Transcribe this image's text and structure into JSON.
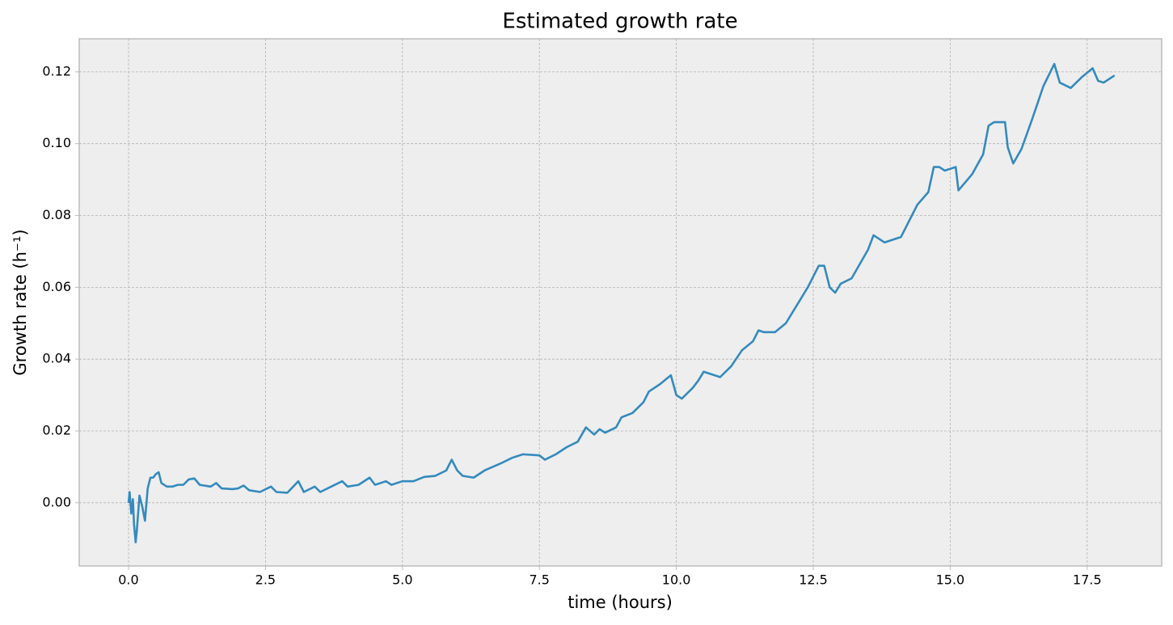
{
  "chart_data": {
    "type": "line",
    "title": "Estimated growth rate",
    "xlabel": "time (hours)",
    "ylabel": "Growth rate (h⁻¹)",
    "grid": true,
    "xlim": [
      -0.9,
      18.86
    ],
    "ylim": [
      -0.0176,
      0.1292
    ],
    "xticks": [
      {
        "value": 0,
        "label": "0.0"
      },
      {
        "value": 2.5,
        "label": "2.5"
      },
      {
        "value": 5,
        "label": "5.0"
      },
      {
        "value": 7.5,
        "label": "7.5"
      },
      {
        "value": 10,
        "label": "10.0"
      },
      {
        "value": 12.5,
        "label": "12.5"
      },
      {
        "value": 15,
        "label": "15.0"
      },
      {
        "value": 17.5,
        "label": "17.5"
      }
    ],
    "yticks": [
      {
        "value": 0,
        "label": "0.00"
      },
      {
        "value": 0.02,
        "label": "0.02"
      },
      {
        "value": 0.04,
        "label": "0.04"
      },
      {
        "value": 0.06,
        "label": "0.06"
      },
      {
        "value": 0.08,
        "label": "0.08"
      },
      {
        "value": 0.1,
        "label": "0.10"
      },
      {
        "value": 0.12,
        "label": "0.12"
      }
    ],
    "x": [
      0,
      0.02,
      0.05,
      0.08,
      0.1,
      0.13,
      0.15,
      0.2,
      0.25,
      0.3,
      0.35,
      0.4,
      0.45,
      0.5,
      0.55,
      0.6,
      0.7,
      0.8,
      0.9,
      1.0,
      1.1,
      1.2,
      1.3,
      1.5,
      1.6,
      1.7,
      1.9,
      2.0,
      2.1,
      2.2,
      2.4,
      2.6,
      2.7,
      2.9,
      3.1,
      3.2,
      3.4,
      3.5,
      3.7,
      3.9,
      4.0,
      4.2,
      4.4,
      4.5,
      4.7,
      4.8,
      5.0,
      5.2,
      5.4,
      5.6,
      5.8,
      5.9,
      6.0,
      6.1,
      6.3,
      6.5,
      6.8,
      7.0,
      7.2,
      7.5,
      7.6,
      7.8,
      8.0,
      8.2,
      8.35,
      8.5,
      8.6,
      8.7,
      8.9,
      9.0,
      9.2,
      9.4,
      9.5,
      9.7,
      9.9,
      10.0,
      10.1,
      10.3,
      10.4,
      10.5,
      10.8,
      11.0,
      11.2,
      11.4,
      11.5,
      11.6,
      11.8,
      12.0,
      12.2,
      12.4,
      12.6,
      12.7,
      12.8,
      12.9,
      13.0,
      13.2,
      13.5,
      13.6,
      13.8,
      13.9,
      14.1,
      14.3,
      14.4,
      14.6,
      14.7,
      14.8,
      14.9,
      15.1,
      15.15,
      15.4,
      15.6,
      15.7,
      15.8,
      16.0,
      16.05,
      16.15,
      16.3,
      16.5,
      16.7,
      16.9,
      17.0,
      17.2,
      17.4,
      17.6,
      17.7,
      17.8,
      18.0
    ],
    "series": [
      {
        "name": "growth rate",
        "color": "#348abd",
        "values": [
          0,
          0.003,
          -0.003,
          0.001,
          -0.006,
          -0.011,
          -0.008,
          0.002,
          -0.001,
          -0.005,
          0.004,
          0.007,
          0.007,
          0.008,
          0.0085,
          0.0055,
          0.0045,
          0.0045,
          0.005,
          0.005,
          0.0065,
          0.0068,
          0.005,
          0.0045,
          0.0055,
          0.004,
          0.0038,
          0.004,
          0.0048,
          0.0035,
          0.003,
          0.0045,
          0.003,
          0.0028,
          0.006,
          0.003,
          0.0045,
          0.003,
          0.0045,
          0.006,
          0.0045,
          0.005,
          0.007,
          0.005,
          0.006,
          0.005,
          0.006,
          0.006,
          0.0072,
          0.0075,
          0.009,
          0.012,
          0.009,
          0.0075,
          0.007,
          0.009,
          0.011,
          0.0125,
          0.0135,
          0.0132,
          0.012,
          0.0135,
          0.0155,
          0.017,
          0.021,
          0.019,
          0.0205,
          0.0195,
          0.021,
          0.0238,
          0.025,
          0.028,
          0.031,
          0.033,
          0.0355,
          0.03,
          0.029,
          0.032,
          0.034,
          0.0365,
          0.035,
          0.038,
          0.0425,
          0.045,
          0.048,
          0.0475,
          0.0475,
          0.05,
          0.055,
          0.06,
          0.066,
          0.066,
          0.06,
          0.0585,
          0.061,
          0.0625,
          0.0705,
          0.0745,
          0.0725,
          0.073,
          0.074,
          0.08,
          0.083,
          0.0865,
          0.0935,
          0.0935,
          0.0925,
          0.0935,
          0.087,
          0.0915,
          0.097,
          0.105,
          0.106,
          0.106,
          0.099,
          0.0945,
          0.0985,
          0.107,
          0.116,
          0.1222,
          0.117,
          0.1155,
          0.1185,
          0.121,
          0.1175,
          0.117,
          0.119
        ]
      }
    ]
  }
}
